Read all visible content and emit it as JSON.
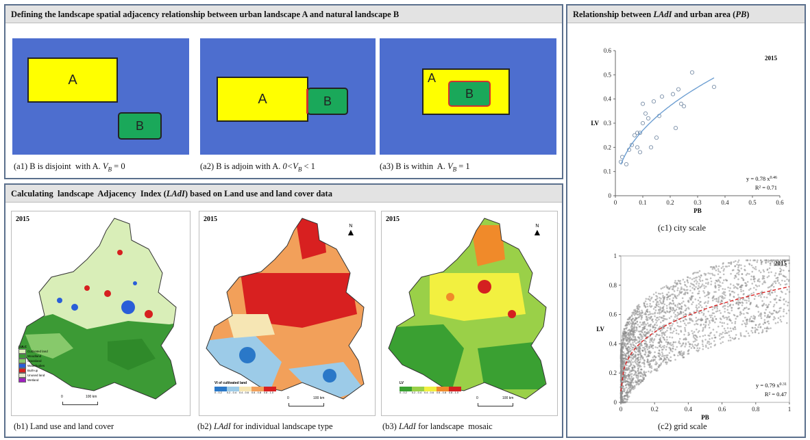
{
  "panel_a": {
    "title": "Defining the landscape spatial adjacency relationship between urban landscape A and natural landscape B",
    "label_a": "A",
    "label_b": "B",
    "captions": [
      "(a1) B is disjoint with A. V_B = 0",
      "(a2) B is adjoin with A. 0<V_B < 1",
      "(a3) B is within A. V_B = 1"
    ]
  },
  "panel_b": {
    "title": "Calculating landscape Adjacency Index (LAdI) based on Land use and land cover data",
    "year": "2015",
    "north": "N",
    "scale_zero": "0",
    "scale_km": "100 km",
    "map1_legend_title": "LULC",
    "map1_legend": [
      "Cultivated land",
      "Woodland",
      "Grassland",
      "Waterbodies",
      "Built-up",
      "Unused land",
      "Wetland"
    ],
    "map2_legend_title": "VI of cultivated land",
    "map3_legend_title": "LV",
    "class_labels": [
      "0 - 0.2",
      "0.2 - 0.4",
      "0.4 - 0.6",
      "0.6 - 0.8",
      "0.8 - 1.0"
    ],
    "captions": [
      "(b1) Land use and land cover",
      "(b2) LAdI for individual landscape type",
      "(b3) LAdI for landscape mosaic"
    ],
    "colors": {
      "lulc": [
        "#d9eeb8",
        "#3c9a35",
        "#87c96b",
        "#2a5ed8",
        "#d62020",
        "#e8e8d0",
        "#a020c0"
      ],
      "ramp_b2": [
        "#2a78c8",
        "#9ccbe8",
        "#f6e6b4",
        "#f2a05a",
        "#d82020"
      ],
      "ramp_b3": [
        "#3aa032",
        "#9ad048",
        "#f2f040",
        "#f08a2a",
        "#d42020"
      ]
    }
  },
  "panel_c": {
    "title": "Relationship between LAdI and urban area (PB)",
    "caption_c1": "(c1) city scale",
    "caption_c2": "(c2) grid scale"
  },
  "chart_data": [
    {
      "type": "scatter",
      "title": "2015",
      "xlabel": "PB",
      "ylabel": "LV",
      "xlim": [
        0,
        0.6
      ],
      "ylim": [
        0,
        0.6
      ],
      "xticks": [
        "0",
        "0.1",
        "0.2",
        "0.3",
        "0.4",
        "0.5",
        "0.6"
      ],
      "yticks": [
        "0",
        "0.1",
        "0.2",
        "0.3",
        "0.4",
        "0.5",
        "0.6"
      ],
      "points": [
        [
          0.02,
          0.14
        ],
        [
          0.025,
          0.16
        ],
        [
          0.04,
          0.13
        ],
        [
          0.05,
          0.19
        ],
        [
          0.06,
          0.21
        ],
        [
          0.07,
          0.25
        ],
        [
          0.08,
          0.26
        ],
        [
          0.08,
          0.2
        ],
        [
          0.09,
          0.18
        ],
        [
          0.09,
          0.26
        ],
        [
          0.1,
          0.3
        ],
        [
          0.1,
          0.38
        ],
        [
          0.11,
          0.34
        ],
        [
          0.12,
          0.32
        ],
        [
          0.13,
          0.2
        ],
        [
          0.14,
          0.39
        ],
        [
          0.15,
          0.24
        ],
        [
          0.16,
          0.33
        ],
        [
          0.17,
          0.41
        ],
        [
          0.21,
          0.42
        ],
        [
          0.22,
          0.28
        ],
        [
          0.23,
          0.44
        ],
        [
          0.24,
          0.38
        ],
        [
          0.25,
          0.37
        ],
        [
          0.28,
          0.51
        ],
        [
          0.36,
          0.45
        ]
      ],
      "fit": {
        "a": 0.78,
        "b": 0.46,
        "x_from": 0.02,
        "x_to": 0.36
      },
      "equation": "y = 0.78 x",
      "equation_exp": "0.46",
      "r2": "R² = 0.71"
    },
    {
      "type": "scatter",
      "title": "2015",
      "xlabel": "PB",
      "ylabel": "LV",
      "xlim": [
        0,
        1
      ],
      "ylim": [
        0,
        1
      ],
      "xticks": [
        "0",
        "0.2",
        "0.4",
        "0.6",
        "0.8",
        "1"
      ],
      "yticks": [
        "0",
        "0.2",
        "0.4",
        "0.6",
        "0.8",
        "1"
      ],
      "fit": {
        "a": 0.79,
        "b": 0.31,
        "x_from": 0.0,
        "x_to": 1.0
      },
      "equation": "y = 0.79 x",
      "equation_exp": "0.31",
      "r2": "R² = 0.47"
    }
  ]
}
